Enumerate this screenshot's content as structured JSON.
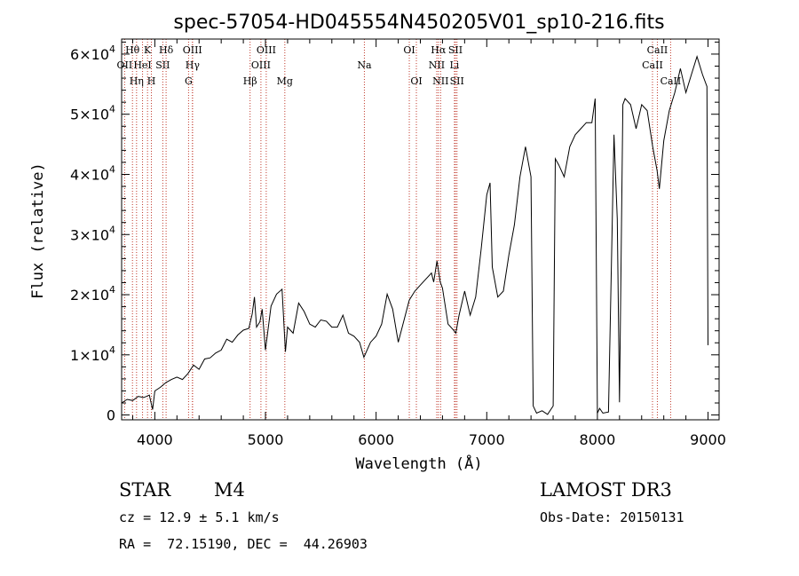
{
  "chart_data": {
    "type": "line",
    "title": "spec-57054-HD045554N450205V01_sp10-216.fits",
    "xlabel": "Wavelength (Å)",
    "ylabel": "Flux (relative)",
    "xlim": [
      3700,
      9100
    ],
    "ylim": [
      -800,
      62500
    ],
    "x_ticks": [
      {
        "value": 4000,
        "label": "4000"
      },
      {
        "value": 5000,
        "label": "5000"
      },
      {
        "value": 6000,
        "label": "6000"
      },
      {
        "value": 7000,
        "label": "7000"
      },
      {
        "value": 8000,
        "label": "8000"
      },
      {
        "value": 9000,
        "label": "9000"
      }
    ],
    "y_ticks": [
      {
        "value": 0,
        "mant": "0",
        "exp": ""
      },
      {
        "value": 10000,
        "mant": "1×10",
        "exp": "4"
      },
      {
        "value": 20000,
        "mant": "2×10",
        "exp": "4"
      },
      {
        "value": 30000,
        "mant": "3×10",
        "exp": "4"
      },
      {
        "value": 40000,
        "mant": "4×10",
        "exp": "4"
      },
      {
        "value": 50000,
        "mant": "5×10",
        "exp": "4"
      },
      {
        "value": 60000,
        "mant": "6×10",
        "exp": "4"
      }
    ],
    "series": [
      {
        "name": "flux",
        "x": [
          3700,
          3750,
          3800,
          3850,
          3900,
          3950,
          3980,
          4000,
          4050,
          4100,
          4150,
          4200,
          4250,
          4300,
          4350,
          4400,
          4450,
          4500,
          4550,
          4600,
          4650,
          4700,
          4750,
          4800,
          4850,
          4880,
          4900,
          4920,
          4950,
          4970,
          5000,
          5050,
          5100,
          5150,
          5180,
          5200,
          5250,
          5300,
          5350,
          5400,
          5450,
          5500,
          5550,
          5600,
          5650,
          5700,
          5750,
          5800,
          5850,
          5890,
          5950,
          6000,
          6050,
          6100,
          6150,
          6200,
          6250,
          6300,
          6350,
          6400,
          6450,
          6500,
          6520,
          6550,
          6563,
          6580,
          6600,
          6650,
          6700,
          6720,
          6750,
          6800,
          6850,
          6900,
          6950,
          7000,
          7030,
          7050,
          7100,
          7150,
          7200,
          7250,
          7300,
          7350,
          7400,
          7420,
          7450,
          7500,
          7550,
          7600,
          7620,
          7650,
          7700,
          7750,
          7800,
          7850,
          7900,
          7950,
          7980,
          8000,
          8020,
          8050,
          8100,
          8150,
          8180,
          8200,
          8230,
          8250,
          8300,
          8350,
          8400,
          8450,
          8500,
          8540,
          8560,
          8600,
          8650,
          8700,
          8750,
          8800,
          8850,
          8900,
          8950,
          8990,
          9000
        ],
        "y": [
          2000,
          2600,
          2400,
          3100,
          2900,
          3300,
          900,
          4000,
          4600,
          5400,
          5900,
          6300,
          5900,
          6900,
          8300,
          7600,
          9300,
          9500,
          10300,
          10800,
          12600,
          12100,
          13300,
          14100,
          14400,
          16800,
          19600,
          14600,
          15500,
          17600,
          10800,
          18100,
          20100,
          20900,
          10500,
          14600,
          13600,
          18600,
          17200,
          15100,
          14600,
          15800,
          15600,
          14600,
          14600,
          16600,
          13600,
          13100,
          12100,
          9600,
          12100,
          13100,
          15100,
          20100,
          17600,
          12100,
          15600,
          19100,
          20600,
          21600,
          22600,
          23600,
          22100,
          25600,
          24100,
          22100,
          21100,
          15100,
          14100,
          13600,
          16600,
          20600,
          16600,
          19600,
          27600,
          36600,
          38600,
          24600,
          19600,
          20600,
          26600,
          31600,
          39600,
          44600,
          39600,
          1500,
          300,
          700,
          100,
          1500,
          42600,
          41600,
          39600,
          44600,
          46600,
          47600,
          48600,
          48600,
          52600,
          300,
          1100,
          300,
          500,
          46600,
          32600,
          2100,
          51600,
          52600,
          51600,
          47600,
          51600,
          50600,
          44600,
          40600,
          37600,
          45600,
          50600,
          53600,
          57600,
          53600,
          56600,
          59600,
          56600,
          54600,
          11600
        ]
      }
    ],
    "spectral_lines": [
      {
        "name": "OII",
        "wavelength": 3727,
        "row": 1
      },
      {
        "name": "Hθ",
        "wavelength": 3798,
        "row": 0
      },
      {
        "name": "Hη",
        "wavelength": 3835,
        "row": 2
      },
      {
        "name": "HeI",
        "wavelength": 3889,
        "row": 1
      },
      {
        "name": "K",
        "wavelength": 3934,
        "row": 0
      },
      {
        "name": "H",
        "wavelength": 3969,
        "row": 2
      },
      {
        "name": "SII",
        "wavelength": 4072,
        "row": 1
      },
      {
        "name": "Hδ",
        "wavelength": 4102,
        "row": 0
      },
      {
        "name": "G",
        "wavelength": 4305,
        "row": 2
      },
      {
        "name": "OIII",
        "wavelength": 4340,
        "row": 0
      },
      {
        "name": "Hγ",
        "wavelength": 4341,
        "row": 1
      },
      {
        "name": "Hβ",
        "wavelength": 4861,
        "row": 2
      },
      {
        "name": "OIII",
        "wavelength": 4959,
        "row": 1
      },
      {
        "name": "OIII",
        "wavelength": 5007,
        "row": 0
      },
      {
        "name": "Mg",
        "wavelength": 5175,
        "row": 2
      },
      {
        "name": "Na",
        "wavelength": 5894,
        "row": 1
      },
      {
        "name": "OI",
        "wavelength": 6300,
        "row": 0
      },
      {
        "name": "OI",
        "wavelength": 6364,
        "row": 2
      },
      {
        "name": "NII",
        "wavelength": 6548,
        "row": 1
      },
      {
        "name": "Hα",
        "wavelength": 6563,
        "row": 0
      },
      {
        "name": "NII",
        "wavelength": 6583,
        "row": 2
      },
      {
        "name": "SII",
        "wavelength": 6717,
        "row": 0
      },
      {
        "name": "Li",
        "wavelength": 6708,
        "row": 1
      },
      {
        "name": "SII",
        "wavelength": 6731,
        "row": 2
      },
      {
        "name": "CaII",
        "wavelength": 8498,
        "row": 1
      },
      {
        "name": "CaII",
        "wavelength": 8542,
        "row": 0
      },
      {
        "name": "CaII",
        "wavelength": 8662,
        "row": 2
      }
    ]
  },
  "info": {
    "star_class": "STAR",
    "subclass": "M4",
    "survey": "LAMOST DR3",
    "redshift": "cz = 12.9 ± 5.1 km/s",
    "obs_date": "Obs-Date: 20150131",
    "coords": "RA =  72.15190, DEC =  44.26903"
  },
  "colors": {
    "line_marker": "#c0392b",
    "spectrum": "#000000"
  }
}
